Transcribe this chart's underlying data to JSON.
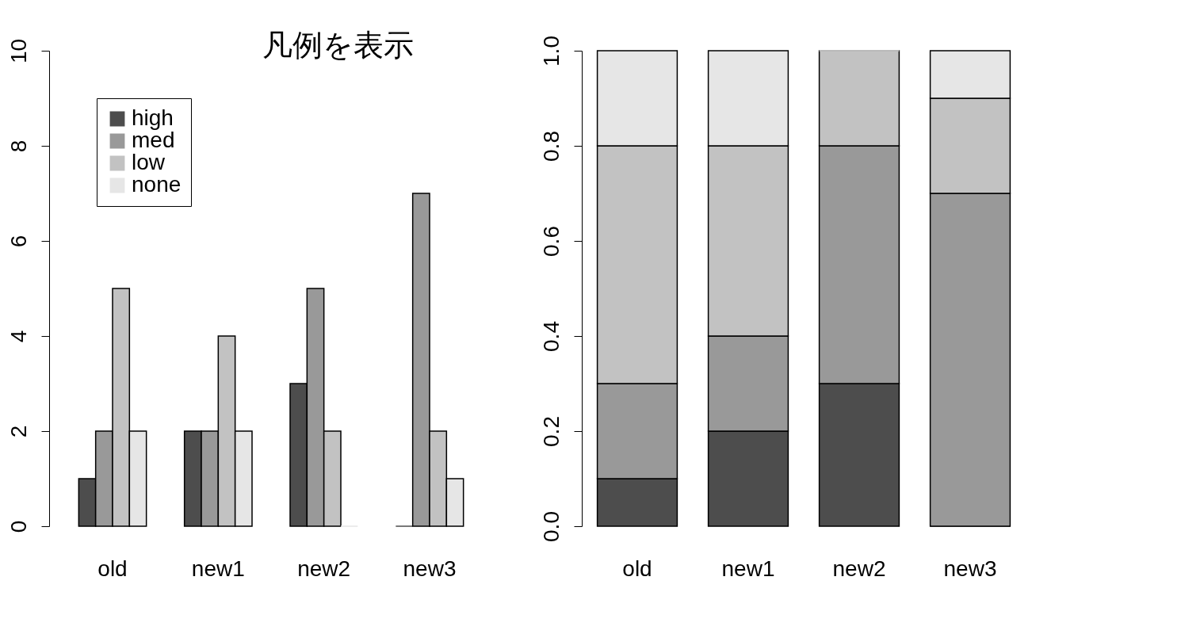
{
  "chart_data": [
    {
      "type": "bar",
      "categories": [
        "old",
        "new1",
        "new2",
        "new3"
      ],
      "series": [
        {
          "name": "high",
          "color": "#4d4d4d",
          "values": [
            1,
            2,
            3,
            0
          ]
        },
        {
          "name": "med",
          "color": "#999999",
          "values": [
            2,
            2,
            5,
            7
          ]
        },
        {
          "name": "low",
          "color": "#c2c2c2",
          "values": [
            5,
            4,
            2,
            2
          ]
        },
        {
          "name": "none",
          "color": "#e6e6e6",
          "values": [
            2,
            2,
            0,
            1
          ]
        }
      ],
      "ylim": [
        0,
        10
      ],
      "yticks": [
        0,
        2,
        4,
        6,
        8,
        10
      ],
      "grid": false,
      "legend": "top left",
      "annotations": [
        "凡例を表示"
      ]
    },
    {
      "type": "bar",
      "stacked": true,
      "categories": [
        "old",
        "new1",
        "new2",
        "new3"
      ],
      "series": [
        {
          "color": "#4d4d4d",
          "values": [
            0.1,
            0.2,
            0.3,
            0
          ]
        },
        {
          "color": "#999999",
          "values": [
            0.2,
            0.2,
            0.5,
            0.7
          ]
        },
        {
          "color": "#c2c2c2",
          "values": [
            0.5,
            0.4,
            0.2,
            0.2
          ]
        },
        {
          "color": "#e6e6e6",
          "values": [
            0.2,
            0.2,
            0,
            0.1
          ]
        }
      ],
      "ylim": [
        0,
        1
      ],
      "yticks": [
        {
          "value": 0,
          "label": "0.0"
        },
        {
          "value": 0.2,
          "label": "0.2"
        },
        {
          "value": 0.4,
          "label": "0.4"
        },
        {
          "value": 0.6,
          "label": "0.6"
        },
        {
          "value": 0.8,
          "label": "0.8"
        },
        {
          "value": 1,
          "label": "1.0"
        }
      ],
      "grid": false
    }
  ]
}
